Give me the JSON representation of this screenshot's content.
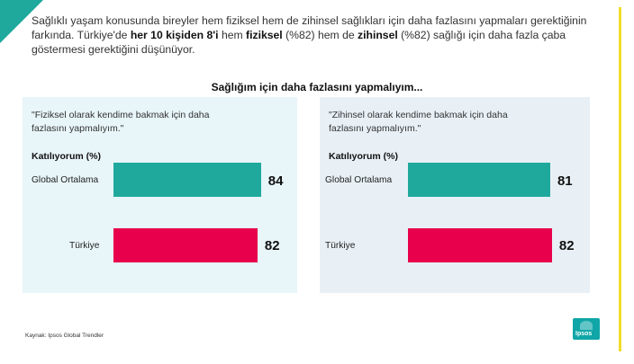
{
  "intro": {
    "p1": "Sağlıklı yaşam konusunda bireyler hem fiziksel hem de zihinsel sağlıkları için daha fazlasını yapmaları gerektiğinin farkında. Türkiye'de ",
    "b1": "her 10 kişiden 8'i",
    "p2": " hem ",
    "b2": "fiziksel",
    "p3": " (%82) hem de ",
    "b3": "zihinsel",
    "p4": " (%82) sağlığı için daha fazla çaba göstermesi gerektiğini düşünüyor."
  },
  "source": "Kaynak: Ipsos Global Trendler",
  "logo_text": "Ipsos",
  "colors": {
    "teal": "#1fa99c",
    "pink": "#e8004d",
    "accent_yellow": "#f0dc2a"
  },
  "chart_data": {
    "type": "bar",
    "title": "Sağlığım için daha fazlasını yapmalıyım...",
    "xlim": [
      0,
      100
    ],
    "panels": [
      {
        "question": "\"Fiziksel olarak kendime bakmak için daha fazlasını yapmalıyım.\"",
        "axis_label": "Katılıyorum (%)",
        "categories": [
          "Global Ortalama",
          "Türkiye"
        ],
        "values": [
          84,
          82
        ],
        "colors": [
          "#1fa99c",
          "#e8004d"
        ]
      },
      {
        "question": "\"Zihinsel olarak kendime bakmak için daha fazlasını yapmalıyım.\"",
        "axis_label": "Katılıyorum (%)",
        "categories": [
          "Global Ortalama",
          "Türkiye"
        ],
        "values": [
          81,
          82
        ],
        "colors": [
          "#1fa99c",
          "#e8004d"
        ]
      }
    ]
  }
}
